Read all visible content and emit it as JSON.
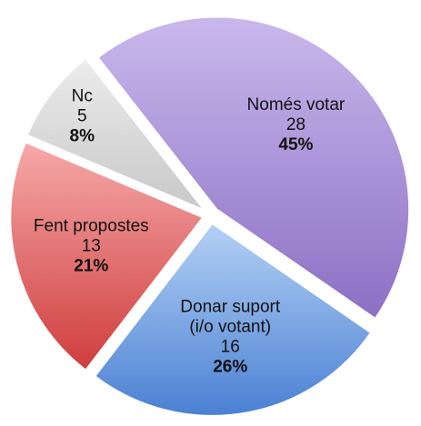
{
  "chart_data": {
    "type": "pie",
    "categories": [
      [
        "Només votar"
      ],
      [
        "Donar suport",
        "(i/o votant)"
      ],
      [
        "Fent propostes"
      ],
      [
        "Nc"
      ]
    ],
    "values": [
      28,
      16,
      13,
      5
    ],
    "percent_labels": [
      "45%",
      "26%",
      "21%",
      "8%"
    ],
    "colors": [
      [
        "#c9b8ec",
        "#8c6fc4"
      ],
      [
        "#b4d1f5",
        "#4a80d3"
      ],
      [
        "#f6a9a9",
        "#cf3d3d"
      ],
      [
        "#ececec",
        "#c8c8c8"
      ]
    ]
  }
}
